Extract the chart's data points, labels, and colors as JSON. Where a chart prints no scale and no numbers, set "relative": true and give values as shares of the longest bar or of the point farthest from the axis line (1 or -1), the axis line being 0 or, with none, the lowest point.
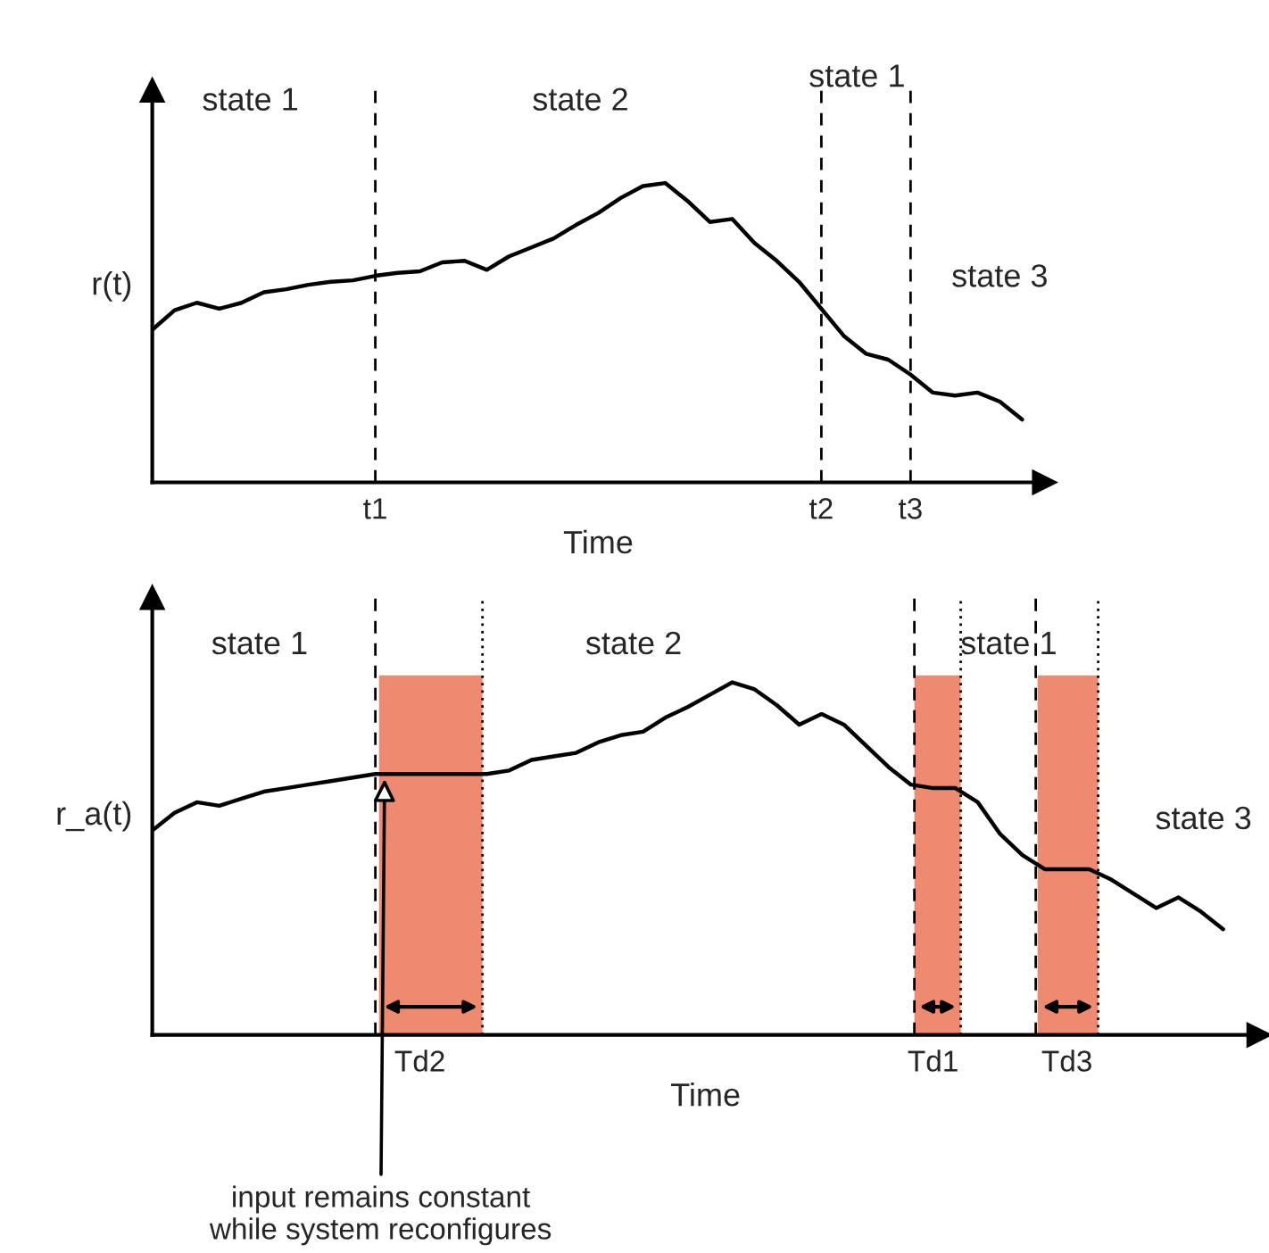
{
  "chart_data": [
    {
      "type": "line",
      "relative": true,
      "ylabel": "r(t)",
      "xlabel": "Time",
      "marker": "none",
      "line_style": "solid",
      "categories": [
        null,
        null,
        null,
        null,
        null,
        null,
        null,
        null,
        null,
        null,
        "t1",
        null,
        null,
        null,
        null,
        null,
        null,
        null,
        null,
        null,
        null,
        null,
        null,
        null,
        null,
        null,
        null,
        null,
        null,
        null,
        "t2",
        null,
        null,
        null,
        "t3",
        null,
        null,
        null,
        null,
        null
      ],
      "series": [
        {
          "color": "#000000",
          "values": [
            0.51,
            0.575,
            0.6,
            0.58,
            0.6,
            0.635,
            0.645,
            0.66,
            0.67,
            0.675,
            0.69,
            0.7,
            0.705,
            0.735,
            0.74,
            0.71,
            0.755,
            0.785,
            0.815,
            0.86,
            0.9,
            0.95,
            0.99,
            1,
            0.94,
            0.87,
            0.88,
            0.8,
            0.74,
            0.67,
            0.58,
            0.49,
            0.43,
            0.41,
            0.36,
            0.3,
            0.29,
            0.3,
            0.27,
            0.21
          ]
        }
      ],
      "ref_lines": [
        {
          "axis": "x",
          "value": "t1",
          "line_style": "dashed"
        },
        {
          "axis": "x",
          "value": "t2",
          "line_style": "dashed"
        },
        {
          "axis": "x",
          "value": "t3",
          "line_style": "dashed"
        }
      ],
      "annotations": [
        "state 1",
        "state 2",
        "state 1",
        "state 3"
      ]
    },
    {
      "type": "line",
      "relative": true,
      "ylabel": "r_a(t)",
      "xlabel": "Time",
      "marker": "none",
      "line_style": "solid",
      "categories": [
        null,
        null,
        null,
        null,
        null,
        null,
        null,
        null,
        null,
        null,
        null,
        null,
        "Td2",
        null,
        null,
        null,
        null,
        null,
        null,
        null,
        null,
        null,
        null,
        null,
        null,
        null,
        null,
        null,
        null,
        null,
        null,
        null,
        null,
        null,
        null,
        "Td1",
        null,
        null,
        null,
        null,
        null,
        "Td3",
        null,
        null,
        null,
        null,
        null,
        null,
        null
      ],
      "series": [
        {
          "color": "#000000",
          "values": [
            0.58,
            0.63,
            0.66,
            0.65,
            0.67,
            0.69,
            0.7,
            0.71,
            0.72,
            0.73,
            0.74,
            0.74,
            0.74,
            0.74,
            0.74,
            0.74,
            0.75,
            0.78,
            0.79,
            0.8,
            0.83,
            0.85,
            0.86,
            0.9,
            0.93,
            0.965,
            1,
            0.98,
            0.935,
            0.88,
            0.91,
            0.88,
            0.82,
            0.76,
            0.71,
            0.7,
            0.7,
            0.66,
            0.57,
            0.51,
            0.47,
            0.47,
            0.47,
            0.44,
            0.4,
            0.36,
            0.39,
            0.35,
            0.3
          ]
        }
      ],
      "annotations": [
        "state 1",
        "state 2",
        "state 1",
        "state 3",
        "input remains constant\nwhile system reconfigures"
      ]
    }
  ]
}
